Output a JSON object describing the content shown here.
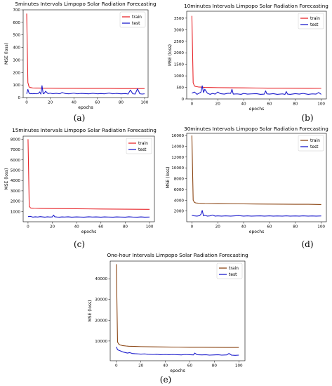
{
  "chart_data": [
    {
      "type": "line",
      "title": "5minutes Intervals Limpopo Solar Radiation Forecasting",
      "caption": "(a)",
      "xlabel": "epochs",
      "ylabel": "MSE (loss)",
      "xlim": [
        -3,
        103
      ],
      "ylim": [
        0,
        700
      ],
      "xticks": [
        0,
        20,
        40,
        60,
        80,
        100
      ],
      "yticks": [
        0,
        100,
        200,
        300,
        400,
        500,
        600,
        700
      ],
      "legend": "top-right",
      "series": [
        {
          "name": "train",
          "color": "#e8262b",
          "x": [
            0,
            1,
            2,
            3,
            5,
            8,
            10,
            15,
            20,
            30,
            40,
            50,
            60,
            70,
            80,
            90,
            100
          ],
          "y": [
            670,
            120,
            85,
            80,
            77,
            76,
            76,
            75,
            75,
            74,
            74,
            73,
            73,
            73,
            72,
            72,
            72
          ]
        },
        {
          "name": "test",
          "color": "#1c1ccc",
          "x": [
            0,
            1,
            2,
            3,
            4,
            5,
            6,
            8,
            10,
            11,
            12,
            13,
            14,
            15,
            16,
            18,
            20,
            22,
            25,
            28,
            30,
            33,
            36,
            40,
            43,
            46,
            50,
            53,
            56,
            60,
            63,
            66,
            70,
            73,
            76,
            80,
            84,
            86,
            88,
            90,
            92,
            94,
            96,
            98,
            100
          ],
          "y": [
            30,
            65,
            35,
            30,
            32,
            30,
            32,
            30,
            33,
            45,
            28,
            95,
            30,
            35,
            50,
            32,
            35,
            30,
            34,
            30,
            40,
            32,
            30,
            35,
            30,
            33,
            31,
            30,
            34,
            30,
            32,
            30,
            36,
            30,
            33,
            30,
            32,
            28,
            60,
            30,
            28,
            70,
            30,
            28,
            30
          ]
        }
      ]
    },
    {
      "type": "line",
      "title": "10minutes Intervals Limpopo Solar Radiation Forecasting",
      "caption": "(b)",
      "xlabel": "epochs",
      "ylabel": "MSE (loss)",
      "xlim": [
        -4,
        104
      ],
      "ylim": [
        0,
        3800
      ],
      "xticks": [
        0,
        20,
        40,
        60,
        80,
        100
      ],
      "yticks": [
        0,
        500,
        1000,
        1500,
        2000,
        2500,
        3000,
        3500
      ],
      "legend": "top-right",
      "series": [
        {
          "name": "train",
          "color": "#e8262b",
          "x": [
            0,
            1,
            2,
            3,
            5,
            8,
            10,
            20,
            30,
            40,
            50,
            60,
            70,
            80,
            90,
            100
          ],
          "y": [
            3600,
            700,
            560,
            540,
            520,
            510,
            500,
            490,
            485,
            480,
            475,
            470,
            468,
            465,
            462,
            460
          ]
        },
        {
          "name": "test",
          "color": "#1c1ccc",
          "x": [
            0,
            2,
            4,
            6,
            7,
            8,
            9,
            10,
            12,
            14,
            16,
            18,
            20,
            22,
            25,
            28,
            30,
            31,
            32,
            35,
            38,
            40,
            43,
            46,
            50,
            53,
            56,
            57,
            58,
            60,
            63,
            66,
            70,
            72,
            73,
            74,
            76,
            80,
            83,
            86,
            90,
            93,
            96,
            98,
            100
          ],
          "y": [
            250,
            300,
            200,
            260,
            300,
            570,
            280,
            420,
            250,
            200,
            240,
            210,
            300,
            230,
            210,
            250,
            240,
            420,
            210,
            220,
            200,
            240,
            210,
            220,
            230,
            200,
            210,
            350,
            220,
            210,
            230,
            200,
            220,
            200,
            320,
            210,
            200,
            230,
            210,
            240,
            200,
            220,
            210,
            280,
            200
          ]
        }
      ]
    },
    {
      "type": "line",
      "title": "15minutes Intervals Limpopo Solar Radiation Forecasting",
      "caption": "(c)",
      "xlabel": "epochs",
      "ylabel": "MSE (loss)",
      "xlim": [
        -4,
        104
      ],
      "ylim": [
        0,
        8300
      ],
      "xticks": [
        0,
        20,
        40,
        60,
        80,
        100
      ],
      "yticks": [
        1000,
        2000,
        3000,
        4000,
        5000,
        6000,
        7000,
        8000
      ],
      "legend": "top-right",
      "series": [
        {
          "name": "train",
          "color": "#e8262b",
          "x": [
            0,
            1,
            2,
            3,
            5,
            10,
            20,
            30,
            40,
            50,
            60,
            70,
            80,
            90,
            100
          ],
          "y": [
            8000,
            1500,
            1350,
            1320,
            1310,
            1300,
            1280,
            1270,
            1260,
            1250,
            1240,
            1230,
            1220,
            1210,
            1200
          ]
        },
        {
          "name": "test",
          "color": "#1c1ccc",
          "x": [
            0,
            2,
            4,
            6,
            8,
            10,
            12,
            14,
            16,
            18,
            20,
            21,
            22,
            24,
            26,
            28,
            30,
            33,
            36,
            40,
            43,
            46,
            50,
            53,
            56,
            60,
            63,
            66,
            70,
            73,
            76,
            80,
            83,
            86,
            90,
            93,
            96,
            100
          ],
          "y": [
            500,
            520,
            450,
            480,
            460,
            500,
            470,
            450,
            480,
            460,
            470,
            650,
            480,
            460,
            450,
            470,
            460,
            480,
            450,
            470,
            460,
            450,
            480,
            460,
            470,
            450,
            470,
            460,
            450,
            470,
            460,
            450,
            480,
            460,
            450,
            470,
            450,
            460
          ]
        }
      ]
    },
    {
      "type": "line",
      "title": "30minutes Intervals Limpopo Solar Radiation Forecasting",
      "caption": "(d)",
      "xlabel": "epochs",
      "ylabel": "MSE (loss)",
      "xlim": [
        -4,
        104
      ],
      "ylim": [
        0,
        16400
      ],
      "xticks": [
        0,
        20,
        40,
        60,
        80,
        100
      ],
      "yticks": [
        2000,
        4000,
        6000,
        8000,
        10000,
        12000,
        14000,
        16000
      ],
      "legend": "top-right",
      "series": [
        {
          "name": "train",
          "color": "#8b4513",
          "x": [
            0,
            1,
            2,
            3,
            5,
            10,
            20,
            30,
            40,
            50,
            60,
            70,
            80,
            90,
            100
          ],
          "y": [
            16000,
            4000,
            3600,
            3500,
            3450,
            3400,
            3380,
            3350,
            3320,
            3300,
            3280,
            3260,
            3250,
            3240,
            3200
          ]
        },
        {
          "name": "test",
          "color": "#1c1ccc",
          "x": [
            0,
            2,
            4,
            6,
            7,
            8,
            9,
            10,
            12,
            14,
            16,
            18,
            20,
            23,
            26,
            30,
            33,
            36,
            40,
            43,
            46,
            50,
            53,
            56,
            60,
            63,
            66,
            70,
            73,
            76,
            80,
            83,
            86,
            90,
            93,
            96,
            100
          ],
          "y": [
            1200,
            1100,
            1050,
            1150,
            1400,
            2100,
            1100,
            1200,
            1050,
            1100,
            1250,
            1050,
            1100,
            1050,
            1100,
            1050,
            1100,
            1150,
            1050,
            1100,
            1050,
            1080,
            1100,
            1050,
            1100,
            1050,
            1080,
            1050,
            1100,
            1050,
            1080,
            1050,
            1100,
            1050,
            1080,
            1050,
            1080
          ]
        }
      ]
    },
    {
      "type": "line",
      "title": "One-hour Intervals Limpopo Solar Radiation Forecasting",
      "caption": "(e)",
      "xlabel": "epochs",
      "ylabel": "MSE (loss)",
      "xlim": [
        -5,
        105
      ],
      "ylim": [
        500,
        48500
      ],
      "xticks": [
        0,
        20,
        40,
        60,
        80,
        100
      ],
      "yticks": [
        10000,
        20000,
        30000,
        40000
      ],
      "legend": "top-right",
      "series": [
        {
          "name": "train",
          "color": "#8b4513",
          "x": [
            0,
            1,
            2,
            3,
            5,
            8,
            10,
            15,
            20,
            30,
            40,
            50,
            60,
            70,
            80,
            90,
            100
          ],
          "y": [
            47000,
            9500,
            8500,
            8100,
            7800,
            7600,
            7500,
            7400,
            7300,
            7200,
            7100,
            7050,
            7000,
            7000,
            6950,
            6900,
            6900
          ]
        },
        {
          "name": "test",
          "color": "#1c1ccc",
          "x": [
            0,
            1,
            3,
            5,
            7,
            9,
            11,
            13,
            15,
            18,
            20,
            23,
            26,
            30,
            33,
            36,
            40,
            43,
            46,
            50,
            53,
            56,
            60,
            63,
            64,
            66,
            70,
            73,
            76,
            80,
            83,
            86,
            90,
            92,
            94,
            97,
            100
          ],
          "y": [
            7200,
            5800,
            5300,
            4800,
            4500,
            4200,
            4400,
            4000,
            3900,
            3800,
            3700,
            3800,
            3600,
            3500,
            3600,
            3400,
            3500,
            3400,
            3500,
            3400,
            3300,
            3500,
            3400,
            3300,
            4200,
            3400,
            3300,
            3400,
            3200,
            3300,
            3400,
            3200,
            3300,
            4000,
            3200,
            3100,
            3200
          ]
        }
      ]
    }
  ]
}
